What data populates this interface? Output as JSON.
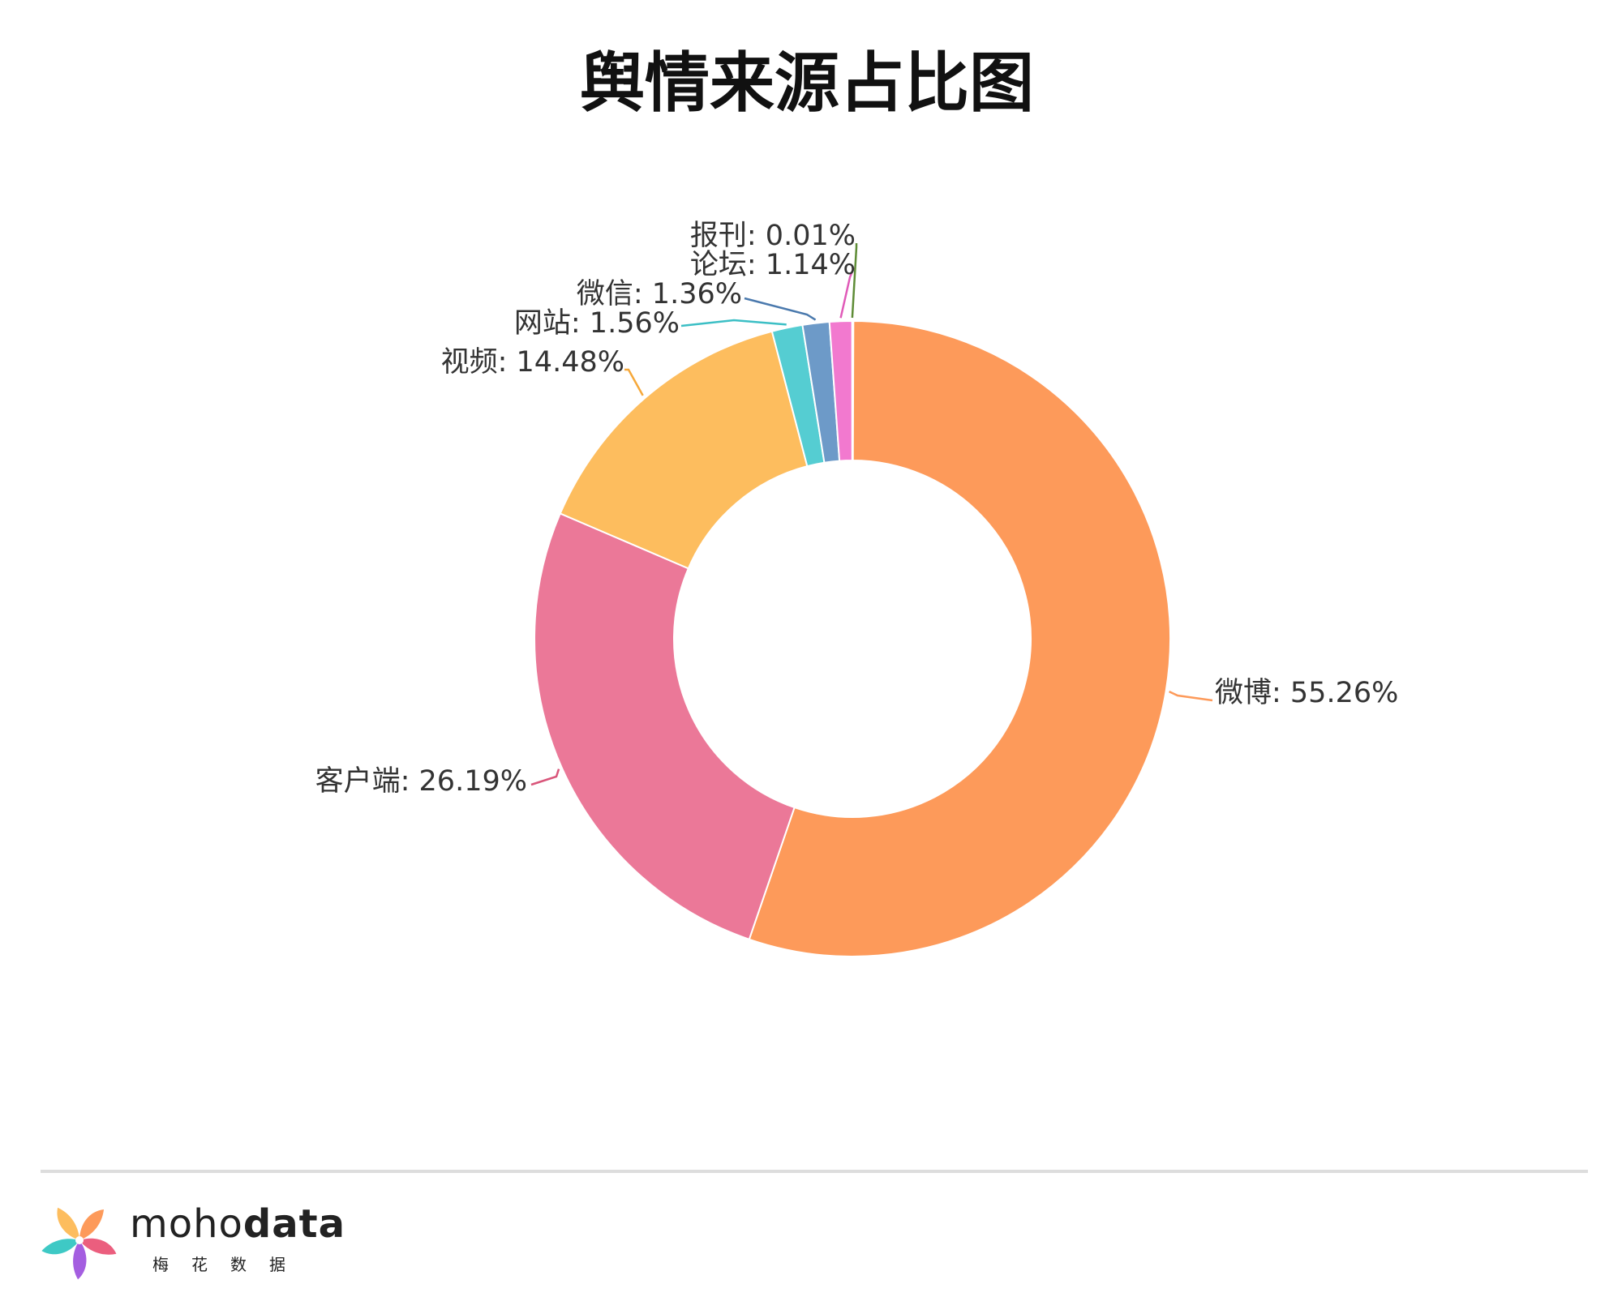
{
  "chart_data": {
    "type": "pie",
    "style": "donut",
    "title": "舆情来源占比图",
    "slices": [
      {
        "name": "微博",
        "value": 55.26,
        "label": "微博: 55.26%",
        "color": "#fd9a5a",
        "line_color": "#fd9a5a"
      },
      {
        "name": "客户端",
        "value": 26.19,
        "label": "客户端: 26.19%",
        "color": "#eb7898",
        "line_color": "#d9557a"
      },
      {
        "name": "视频",
        "value": 14.48,
        "label": "视频: 14.48%",
        "color": "#fdbd5e",
        "line_color": "#f6a83a"
      },
      {
        "name": "网站",
        "value": 1.56,
        "label": "网站: 1.56%",
        "color": "#55cdd2",
        "line_color": "#3cbfc5"
      },
      {
        "name": "微信",
        "value": 1.36,
        "label": "微信: 1.36%",
        "color": "#6d9ac8",
        "line_color": "#4a79ad"
      },
      {
        "name": "论坛",
        "value": 1.14,
        "label": "论坛: 1.14%",
        "color": "#f279cf",
        "line_color": "#e05ab8"
      },
      {
        "name": "报刊",
        "value": 0.01,
        "label": "报刊: 0.01%",
        "color": "#78a94a",
        "line_color": "#5e8c36"
      }
    ],
    "legend": "none",
    "label_placement": "outside with leader lines"
  },
  "brand": {
    "name_light": "moho",
    "name_bold": "data",
    "tagline_cn": "梅花数据",
    "logo_colors": [
      "#fd9a5a",
      "#eb5e7e",
      "#a45ee0",
      "#3ec9c5",
      "#fdbd5e"
    ]
  }
}
